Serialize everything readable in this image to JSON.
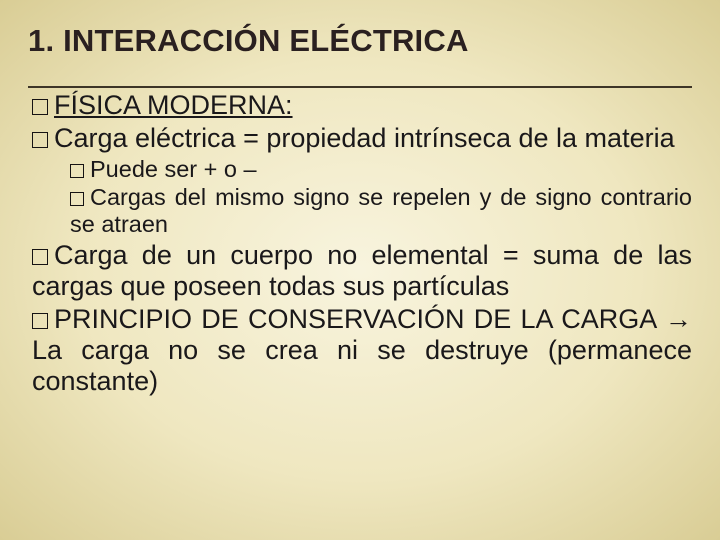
{
  "slide": {
    "background_gradient": [
      "#f8f4de",
      "#efe7c0",
      "#d9cd95"
    ],
    "title": "1. INTERACCIÓN ELÉCTRICA",
    "title_color": "#2a2020",
    "title_fontsize": 31,
    "underline_color": "#3d3527",
    "body_fontsize": 27,
    "sub_fontsize": 23.5,
    "text_color": "#1a181a",
    "items": [
      {
        "level": 1,
        "text": "FÍSICA MODERNA:",
        "underline": true
      },
      {
        "level": 1,
        "text": "Carga eléctrica = propiedad intrínseca de la materia"
      },
      {
        "level": 2,
        "text": "Puede ser + o –"
      },
      {
        "level": 2,
        "text": "Cargas del mismo signo se repelen y de signo contrario se atraen"
      },
      {
        "level": 1,
        "text": "Carga de un cuerpo no elemental = suma de las cargas que poseen todas sus partículas"
      },
      {
        "level": 1,
        "text": "PRINCIPIO DE CONSERVACIÓN DE LA CARGA → La carga no se crea ni se destruye (permanece constante)"
      }
    ]
  }
}
